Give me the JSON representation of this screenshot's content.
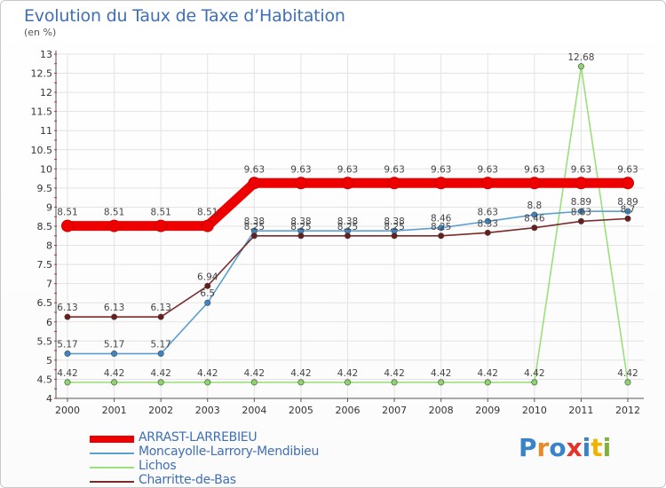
{
  "title": "Evolution du Taux de Taxe d’Habitation",
  "subtitle": "(en %)",
  "logo": {
    "letters": [
      "P",
      "r",
      "o",
      "x",
      "i",
      "t",
      "i"
    ],
    "colors": [
      "#3a83c9",
      "#e98a28",
      "#3a83c9",
      "#e6332a",
      "#3a83c9",
      "#f0b400",
      "#7db33a"
    ]
  },
  "legend": [
    {
      "label": "ARRAST-LARREBIEU",
      "color": "#ee0000"
    },
    {
      "label": "Moncayolle-Larrory-Mendibieu",
      "color": "#5d9fd0"
    },
    {
      "label": "Lichos",
      "color": "#9be07a"
    },
    {
      "label": "Charritte-de-Bas",
      "color": "#7a2a2a"
    }
  ],
  "chart_data": {
    "type": "line",
    "x": [
      "2000",
      "2001",
      "2002",
      "2003",
      "2004",
      "2005",
      "2006",
      "2007",
      "2008",
      "2009",
      "2010",
      "2011",
      "2012"
    ],
    "ylim": [
      4,
      13
    ],
    "yticks": [
      "4",
      "4.5",
      "5",
      "5.5",
      "6",
      "6.5",
      "7",
      "7.5",
      "8",
      "8.5",
      "9",
      "9.5",
      "10",
      "10.5",
      "11",
      "11.5",
      "12",
      "12.5",
      "13"
    ],
    "grid": true,
    "legend_position": "bottom-left",
    "series": [
      {
        "name": "ARRAST-LARREBIEU",
        "color": "#ee0000",
        "values": [
          8.51,
          8.51,
          8.51,
          8.51,
          9.63,
          9.63,
          9.63,
          9.63,
          9.63,
          9.63,
          9.63,
          9.63,
          9.63
        ],
        "labels": [
          "8.51",
          "8.51",
          "8.51",
          "8.51",
          "9.63",
          "9.63",
          "9.63",
          "9.63",
          "9.63",
          "9.63",
          "9.63",
          "9.63",
          "9.63"
        ]
      },
      {
        "name": "Moncayolle-Larrory-Mendibieu",
        "color": "#5d9fd0",
        "values": [
          5.17,
          5.17,
          5.17,
          6.5,
          8.38,
          8.38,
          8.38,
          8.38,
          8.46,
          8.63,
          8.8,
          8.89,
          8.89
        ],
        "labels": [
          "5.17",
          "5.17",
          "5.17",
          "6.5",
          "8.38",
          "8.38",
          "8.38",
          "8.38",
          "8.46",
          "8.63",
          "8.8",
          "8.89",
          "8.89"
        ]
      },
      {
        "name": "Lichos",
        "color": "#9be07a",
        "values": [
          4.42,
          4.42,
          4.42,
          4.42,
          4.42,
          4.42,
          4.42,
          4.42,
          4.42,
          4.42,
          4.42,
          12.68,
          4.42
        ],
        "labels": [
          "4.42",
          "4.42",
          "4.42",
          "4.42",
          "4.42",
          "4.42",
          "4.42",
          "4.42",
          "4.42",
          "4.42",
          "4.42",
          "12.68",
          "4.42"
        ]
      },
      {
        "name": "Charritte-de-Bas",
        "color": "#7a2a2a",
        "values": [
          6.13,
          6.13,
          6.13,
          6.94,
          8.25,
          8.25,
          8.25,
          8.25,
          8.25,
          8.33,
          8.46,
          8.63,
          8.7
        ],
        "labels": [
          "6.13",
          "6.13",
          "6.13",
          "6.94",
          "8.25",
          "8.25",
          "8.25",
          "8.25",
          "8.25",
          "8.33",
          "8.46",
          "8.63",
          "8.7"
        ]
      }
    ]
  }
}
